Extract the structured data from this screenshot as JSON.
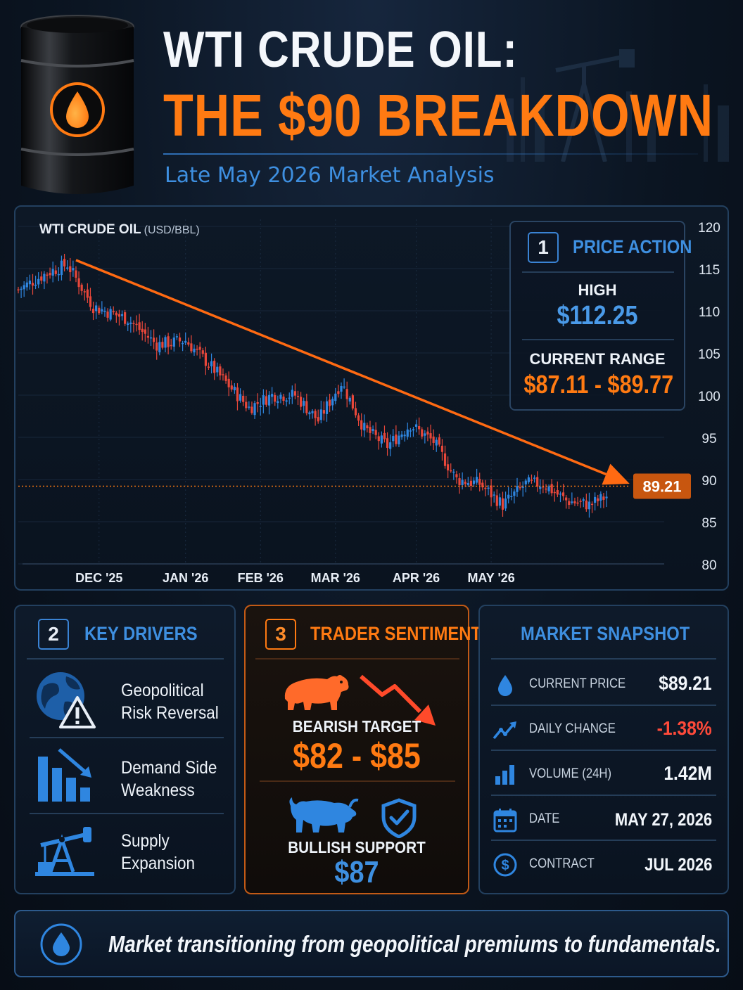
{
  "header": {
    "title_line1": "WTI CRUDE OIL:",
    "title_line2": "THE $90 BREAKDOWN",
    "subtitle": "Late May 2026 Market Analysis"
  },
  "colors": {
    "accent_orange": "#ff7a12",
    "accent_blue": "#3e8fe0",
    "bull_candle": "#2f86e0",
    "bear_candle": "#e8473a",
    "background": "#0b1522"
  },
  "chart_data": {
    "type": "candlestick",
    "title": "WTI CRUDE OIL",
    "unit": "(USD/BBL)",
    "x_ticks": [
      "DEC '25",
      "JAN '26",
      "FEB '26",
      "MAR '26",
      "APR '26",
      "MAY '26"
    ],
    "y_ticks": [
      120,
      115,
      110,
      105,
      100,
      95,
      90,
      85,
      80
    ],
    "ylim": [
      80,
      120
    ],
    "y_axis_side": "right",
    "grid": true,
    "close_path_keypoints": [
      {
        "t": 0,
        "v": 112.5
      },
      {
        "t": 10,
        "v": 114.5
      },
      {
        "t": 17,
        "v": 115.5
      },
      {
        "t": 26,
        "v": 110.5
      },
      {
        "t": 38,
        "v": 109
      },
      {
        "t": 48,
        "v": 106
      },
      {
        "t": 58,
        "v": 106.5
      },
      {
        "t": 68,
        "v": 103
      },
      {
        "t": 80,
        "v": 98.5
      },
      {
        "t": 88,
        "v": 100
      },
      {
        "t": 96,
        "v": 100
      },
      {
        "t": 104,
        "v": 97
      },
      {
        "t": 112,
        "v": 101.5
      },
      {
        "t": 120,
        "v": 96
      },
      {
        "t": 128,
        "v": 94
      },
      {
        "t": 136,
        "v": 96.5
      },
      {
        "t": 144,
        "v": 94.5
      },
      {
        "t": 152,
        "v": 90
      },
      {
        "t": 160,
        "v": 89.5
      },
      {
        "t": 168,
        "v": 87
      },
      {
        "t": 176,
        "v": 89.5
      },
      {
        "t": 182,
        "v": 89.5
      },
      {
        "t": 190,
        "v": 87.5
      },
      {
        "t": 198,
        "v": 87
      },
      {
        "t": 204,
        "v": 88
      }
    ],
    "trend_arrow": {
      "from": {
        "t": 20,
        "v": 116
      },
      "to": {
        "t": 212,
        "v": 89.5
      }
    },
    "current_price_line": 89.21,
    "current_price_label": "89.21"
  },
  "price_action": {
    "number": "1",
    "title": "PRICE ACTION",
    "high_label": "HIGH",
    "high_value": "$112.25",
    "range_label": "CURRENT RANGE",
    "range_value": "$87.11 - $89.77"
  },
  "drivers": {
    "number": "2",
    "title": "KEY DRIVERS",
    "items": [
      {
        "line1": "Geopolitical",
        "line2": "Risk Reversal",
        "icon": "globe-warning-icon"
      },
      {
        "line1": "Demand Side",
        "line2": "Weakness",
        "icon": "bar-chart-down-icon"
      },
      {
        "line1": "Supply",
        "line2": "Expansion",
        "icon": "pumpjack-icon"
      }
    ]
  },
  "sentiment": {
    "number": "3",
    "title": "TRADER SENTIMENT",
    "bear_label": "BEARISH TARGET",
    "bear_value": "$82 - $85",
    "bull_label": "BULLISH SUPPORT",
    "bull_value": "$87"
  },
  "snapshot": {
    "title": "MARKET SNAPSHOT",
    "rows": [
      {
        "label": "CURRENT PRICE",
        "value": "$89.21",
        "icon": "droplet-icon"
      },
      {
        "label": "DAILY CHANGE",
        "value": "-1.38%",
        "icon": "trend-up-icon"
      },
      {
        "label": "VOLUME (24H)",
        "value": "1.42M",
        "icon": "volume-bars-icon"
      },
      {
        "label": "DATE",
        "value": "MAY 27, 2026",
        "icon": "calendar-icon"
      },
      {
        "label": "CONTRACT",
        "value": "JUL 2026",
        "icon": "dollar-coin-icon"
      }
    ]
  },
  "footer": {
    "text": "Market transitioning from geopolitical premiums to fundamentals."
  }
}
